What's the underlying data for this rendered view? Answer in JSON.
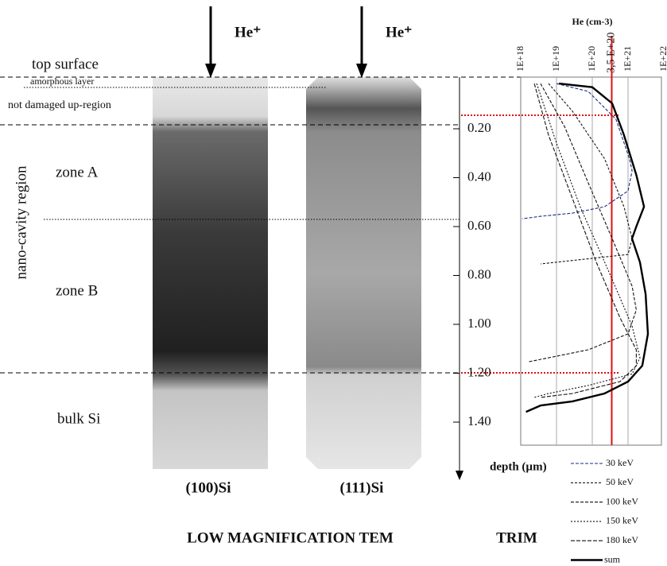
{
  "labels": {
    "top_surface": "top surface",
    "amorphous_layer": "amorphous layer",
    "not_damaged": "not damaged  up-region",
    "region": "nano-cavity region",
    "zone_a": "zone A",
    "zone_b": "zone B",
    "bulk": "bulk Si",
    "footer": "LOW MAGNIFICATION TEM"
  },
  "images": [
    {
      "beam": "He⁺",
      "label": "(100)Si"
    },
    {
      "beam": "He⁺",
      "label": "(111)Si"
    }
  ],
  "chart_data": {
    "type": "line",
    "title": "TRIM",
    "x_label": "He (cm-3)",
    "y_label": "depth (µm)",
    "x_scale": "log",
    "xlim": [
      1e+18,
      1e+22
    ],
    "xticks": [
      {
        "value": 1e+18,
        "label": "1E+18"
      },
      {
        "value": 1e+19,
        "label": "1E+19"
      },
      {
        "value": 1e+20,
        "label": "1E+20"
      },
      {
        "value": 1e+21,
        "label": "1E+21"
      },
      {
        "value": 1e+22,
        "label": "1E+22"
      }
    ],
    "ylim": [
      0,
      1.6
    ],
    "yticks": [
      {
        "value": 0.2,
        "label": "0.20"
      },
      {
        "value": 0.4,
        "label": "0.40"
      },
      {
        "value": 0.6,
        "label": "0.60"
      },
      {
        "value": 0.8,
        "label": "0.80"
      },
      {
        "value": 1.0,
        "label": "1.00"
      },
      {
        "value": 1.2,
        "label": "1.20"
      },
      {
        "value": 1.4,
        "label": "1.40"
      }
    ],
    "reference_line": {
      "value": 3.5e+20,
      "label": "3,5 E+20",
      "color": "#e01010"
    },
    "series": [
      {
        "name": "30 keV",
        "color": "#1a2a80",
        "dash": "4 2",
        "x": [
          1e+19,
          7.7e+19,
          4.6e+20,
          1.1e+21,
          1.3e+21,
          1e+21,
          2.2e+20,
          2.8e+19,
          3.6e+18,
          1.1e+18
        ],
        "y": [
          0.015,
          0.047,
          0.161,
          0.324,
          0.372,
          0.454,
          0.519,
          0.545,
          0.558,
          0.568
        ]
      },
      {
        "name": "50 keV",
        "color": "#111111",
        "dash": "3 2",
        "x": [
          6e+18,
          2.8e+19,
          2.2e+20,
          7.7e+20,
          1.3e+21,
          1e+21,
          3.6e+18
        ],
        "y": [
          0.015,
          0.128,
          0.322,
          0.519,
          0.649,
          0.714,
          0.753
        ]
      },
      {
        "name": "100 keV",
        "color": "#111111",
        "dash": "4 2",
        "x": [
          3.6e+18,
          1.7e+19,
          7.7e+19,
          3.6e+20,
          1.3e+21,
          1.7e+21,
          1e+21,
          7.7e+19,
          6e+18,
          1.7e+18
        ],
        "y": [
          0.015,
          0.193,
          0.421,
          0.649,
          0.844,
          0.941,
          1.039,
          1.104,
          1.137,
          1.153
        ]
      },
      {
        "name": "150 keV",
        "color": "#111111",
        "dash": "2 2",
        "x": [
          2.8e+18,
          1e+19,
          4.6e+19,
          2.8e+20,
          1.3e+21,
          2.15e+21,
          1.3e+21,
          7.7e+19,
          6e+18,
          2.4e+18
        ],
        "y": [
          0.015,
          0.259,
          0.519,
          0.779,
          1.007,
          1.137,
          1.203,
          1.25,
          1.283,
          1.299
        ]
      },
      {
        "name": "180 keV",
        "color": "#111111",
        "dash": "5 2",
        "x": [
          2.4e+18,
          6e+18,
          2.8e+19,
          1.3e+20,
          6e+20,
          1.7e+21,
          1.7e+21,
          6e+20,
          2.8e+19,
          3.6e+18
        ],
        "y": [
          0.015,
          0.226,
          0.486,
          0.746,
          0.974,
          1.104,
          1.169,
          1.234,
          1.283,
          1.299
        ]
      },
      {
        "name": "sum",
        "color": "#000000",
        "dash": "",
        "width": 2.4,
        "x": [
          1.17e+19,
          1e+20,
          3.6e+20,
          7.7e+20,
          1.7e+21,
          2.8e+21,
          1.7e+21,
          1.29e+21,
          2.15e+21,
          3.1e+21,
          3.6e+21,
          2.5e+21,
          1e+21,
          2.2e+20,
          2.8e+19,
          3.6e+18,
          1.4e+18
        ],
        "y": [
          0.015,
          0.03,
          0.096,
          0.226,
          0.389,
          0.519,
          0.6,
          0.649,
          0.746,
          0.876,
          1.039,
          1.169,
          1.234,
          1.283,
          1.315,
          1.332,
          1.358
        ]
      }
    ]
  }
}
